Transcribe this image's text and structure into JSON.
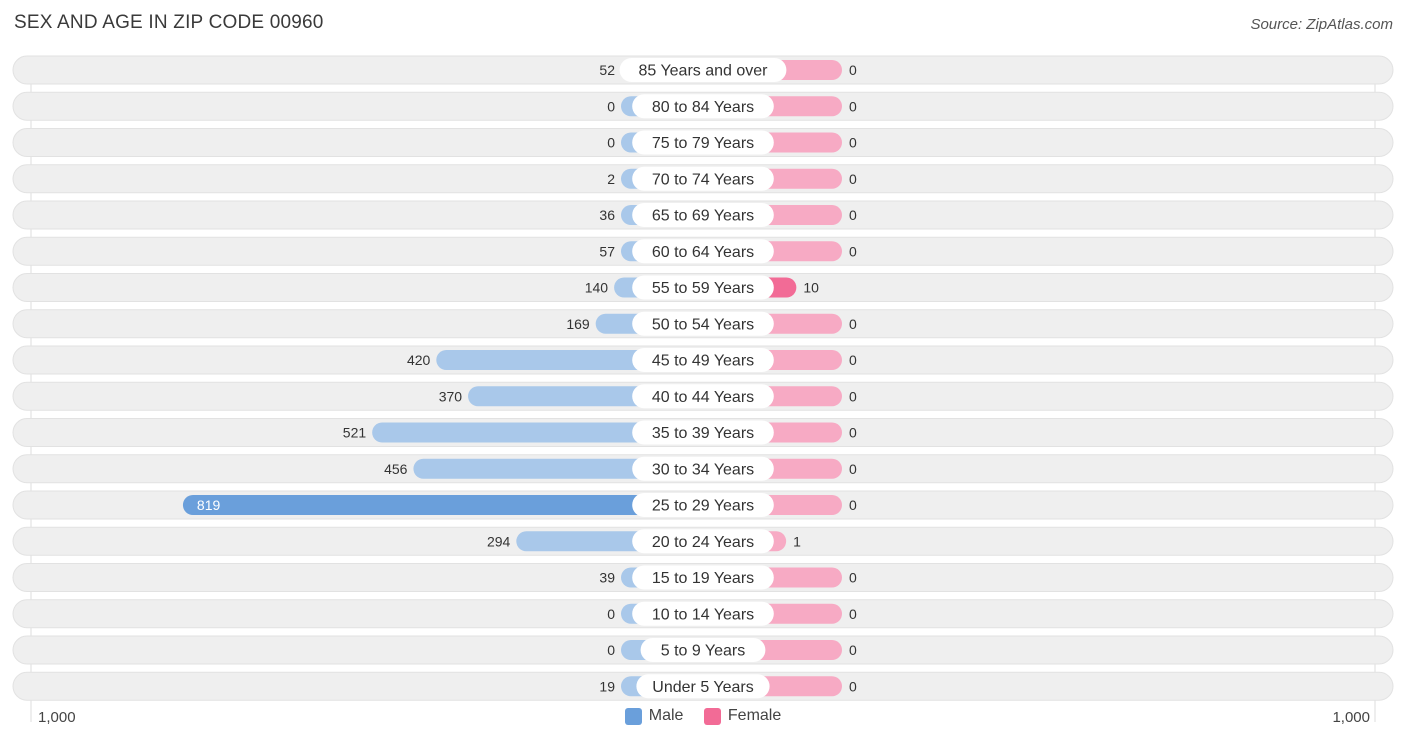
{
  "header": {
    "title": "SEX AND AGE IN ZIP CODE 00960",
    "source": "Source: ZipAtlas.com"
  },
  "colors": {
    "male_light": "#a9c8ea",
    "male_strong": "#6a9fdb",
    "female_light": "#f7aac4",
    "female_strong": "#f26b96",
    "row_background": "#efefef"
  },
  "chart_data": {
    "type": "bar",
    "orientation": "horizontal-diverging",
    "categories": [
      "85 Years and over",
      "80 to 84 Years",
      "75 to 79 Years",
      "70 to 74 Years",
      "65 to 69 Years",
      "60 to 64 Years",
      "55 to 59 Years",
      "50 to 54 Years",
      "45 to 49 Years",
      "40 to 44 Years",
      "35 to 39 Years",
      "30 to 34 Years",
      "25 to 29 Years",
      "20 to 24 Years",
      "15 to 19 Years",
      "10 to 14 Years",
      "5 to 9 Years",
      "Under 5 Years"
    ],
    "series": [
      {
        "name": "Male",
        "values": [
          52,
          0,
          0,
          2,
          36,
          57,
          140,
          169,
          420,
          370,
          521,
          456,
          819,
          294,
          39,
          0,
          0,
          19
        ]
      },
      {
        "name": "Female",
        "values": [
          0,
          0,
          0,
          0,
          0,
          0,
          10,
          0,
          0,
          0,
          0,
          0,
          0,
          1,
          0,
          0,
          0,
          0
        ]
      }
    ],
    "axis": {
      "left_label": "1,000",
      "right_label": "1,000",
      "max": 1000
    },
    "legend": {
      "placement": "bottom-center",
      "male_label": "Male",
      "female_label": "Female"
    }
  }
}
